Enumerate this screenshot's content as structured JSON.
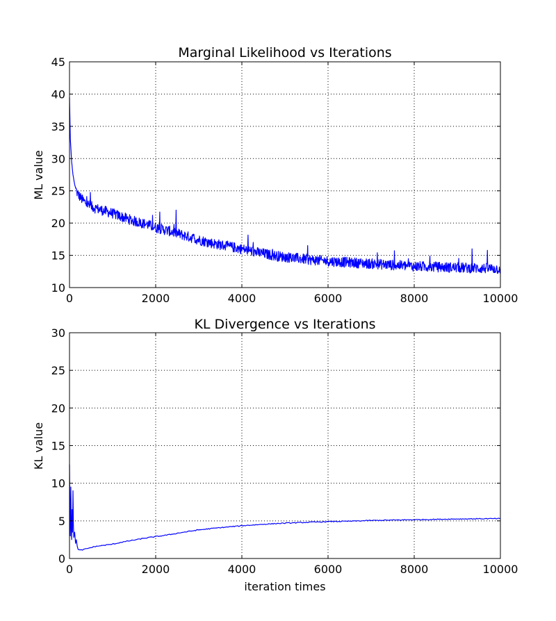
{
  "chart_data": [
    {
      "type": "line",
      "title": "Marginal Likelihood vs Iterations",
      "xlabel": "",
      "ylabel": "ML value",
      "xlim": [
        0,
        10000
      ],
      "ylim": [
        10,
        45
      ],
      "grid": true,
      "x_ticks": [
        0,
        2000,
        4000,
        6000,
        8000,
        10000
      ],
      "y_ticks": [
        10,
        15,
        20,
        25,
        30,
        35,
        40,
        45
      ],
      "series": [
        {
          "color": "#0000ff",
          "x": [
            0,
            20,
            50,
            80,
            120,
            160,
            200,
            250,
            300,
            400,
            500,
            600,
            800,
            1000,
            1200,
            1500,
            1800,
            2000,
            2300,
            2600,
            3000,
            3300,
            3600,
            4000,
            4400,
            4800,
            5200,
            5600,
            6000,
            6500,
            7000,
            7500,
            8000,
            8500,
            9000,
            9500,
            10000
          ],
          "y": [
            39.5,
            33.0,
            29.5,
            27.5,
            26.0,
            25.0,
            24.4,
            24.0,
            23.6,
            23.0,
            22.6,
            22.3,
            21.9,
            21.5,
            21.0,
            20.3,
            19.8,
            19.3,
            18.8,
            18.2,
            17.4,
            16.9,
            16.5,
            16.0,
            15.4,
            14.9,
            14.6,
            14.3,
            14.1,
            13.9,
            13.7,
            13.5,
            13.3,
            13.2,
            13.1,
            13.0,
            12.9
          ]
        }
      ]
    },
    {
      "type": "line",
      "title": "KL Divergence vs Iterations",
      "xlabel": "iteration times",
      "ylabel": "KL value",
      "xlim": [
        0,
        10000
      ],
      "ylim": [
        0,
        30
      ],
      "grid": true,
      "x_ticks": [
        0,
        2000,
        4000,
        6000,
        8000,
        10000
      ],
      "y_ticks": [
        0,
        5,
        10,
        15,
        20,
        25,
        30
      ],
      "series": [
        {
          "color": "#0000ff",
          "x": [
            0,
            10,
            20,
            30,
            40,
            50,
            60,
            70,
            80,
            90,
            100,
            120,
            140,
            160,
            180,
            200,
            250,
            300,
            400,
            500,
            600,
            800,
            1000,
            1200,
            1500,
            1800,
            2000,
            2300,
            2600,
            3000,
            3500,
            4000,
            4500,
            5000,
            5500,
            6000,
            6500,
            7000,
            7500,
            8000,
            8500,
            9000,
            9500,
            10000
          ],
          "y": [
            12.5,
            7.0,
            3.0,
            9.5,
            4.0,
            2.5,
            6.5,
            3.5,
            9.0,
            4.5,
            2.8,
            3.5,
            2.0,
            2.5,
            1.6,
            1.2,
            1.1,
            1.15,
            1.3,
            1.45,
            1.6,
            1.75,
            1.9,
            2.15,
            2.45,
            2.75,
            2.9,
            3.15,
            3.45,
            3.8,
            4.1,
            4.35,
            4.55,
            4.7,
            4.8,
            4.9,
            4.95,
            5.05,
            5.1,
            5.15,
            5.2,
            5.25,
            5.28,
            5.3
          ]
        }
      ]
    }
  ]
}
